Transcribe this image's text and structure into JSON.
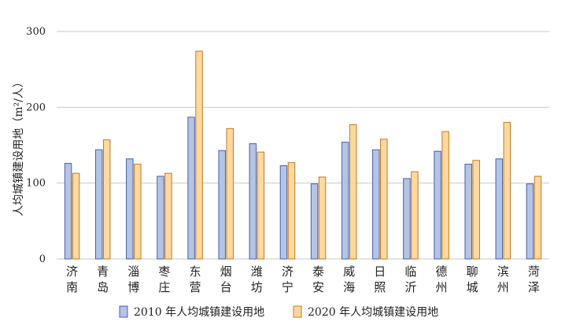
{
  "chart_data": {
    "type": "bar",
    "categories": [
      "济南",
      "青岛",
      "淄博",
      "枣庄",
      "东营",
      "烟台",
      "潍坊",
      "济宁",
      "泰安",
      "威海",
      "日照",
      "临沂",
      "德州",
      "聊城",
      "滨州",
      "菏泽"
    ],
    "series": [
      {
        "name": "2010 年人均城镇建设用地",
        "values": [
          126,
          144,
          132,
          109,
          187,
          143,
          152,
          123,
          99,
          154,
          144,
          106,
          142,
          125,
          132,
          99
        ]
      },
      {
        "name": "2020 年人均城镇建设用地",
        "values": [
          113,
          157,
          125,
          113,
          274,
          172,
          141,
          127,
          108,
          177,
          158,
          115,
          168,
          130,
          180,
          109
        ]
      }
    ],
    "ylabel": "人均城镇建设用地（m²/人）",
    "ylim": [
      0,
      300
    ],
    "yticks": [
      0,
      100,
      200,
      300
    ],
    "grid": true,
    "legend": "bottom",
    "colors": {
      "series1_fill": "#b4c4e4",
      "series1_stroke": "#4a5fa8",
      "series2_fill": "#fdd9a0",
      "series2_stroke": "#c07a20",
      "grid": "#c8c8c8"
    }
  }
}
